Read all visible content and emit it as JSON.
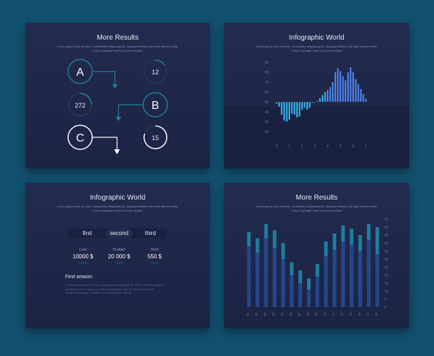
{
  "card1": {
    "title": "More Results",
    "subtitle_lines": [
      "Lorem ipsum dolor sit amet, consectetur adipiscing elit. Quisque facilisis odio vitae laoreet mollis.",
      "Fusce vulputate lorem vel lorem facilisis"
    ],
    "letters": [
      "A",
      "B",
      "C"
    ],
    "numbers": [
      "12",
      "272",
      "15"
    ]
  },
  "card2": {
    "title": "Infographic World",
    "subtitle_lines": [
      "Lorem ipsum dolor sit amet, consectetur adipiscing elit. Quisque facilisis odio vitae laoreet mollis.",
      "Fusce vulputate lorem vel lorem facilisis"
    ]
  },
  "card3": {
    "title": "Infographic World",
    "subtitle_lines": [
      "Lorem ipsum dolor sit amet, consectetur adipiscing elit. Quisque facilisis odio vitae laoreet mollis.",
      "Fusce vulputate lorem vel lorem facilisis"
    ],
    "tabs": [
      "first",
      "second",
      "third"
    ],
    "stats": [
      {
        "label": "Last",
        "value": "10000 $",
        "pct": "+12%"
      },
      {
        "label": "Budget",
        "value": "20 000 $",
        "pct": "+12%"
      },
      {
        "label": "Next",
        "value": "550 $",
        "pct": "+12%"
      }
    ],
    "section_title": "First season",
    "section_text": [
      "Lorem ipsum dolor sit amet, consectetur adipiscing elit. Etiam vel lorem aliquet.",
      "Vestibulum lorem purus, in odio pellentesque lobortis. Etiam consequat",
      "fringilla consequat. Curabitur vel pellentesque iaculis."
    ]
  },
  "card4": {
    "title": "More Results",
    "subtitle_lines": [
      "Lorem ipsum dolor sit amet, consectetur adipiscing elit. Quisque facilisis odio vitae laoreet mollis.",
      "Fusce vulputate lorem vel lorem facilisis"
    ]
  },
  "colors": {
    "page_bg": "#11506e",
    "card_bg": "#232b4f",
    "cyan": "#36b3ea",
    "blue": "#4f86ee",
    "teal": "#1e7f9e",
    "navy": "#25468a"
  },
  "chart_data": [
    {
      "type": "bar",
      "title": "Infographic World",
      "x_ticks": [
        "0",
        "1",
        "2",
        "3",
        "4",
        "5",
        "6",
        "7"
      ],
      "y_ticks": [
        "90",
        "80",
        "70",
        "60",
        "50",
        "40",
        "30",
        "20"
      ],
      "ylim": [
        20,
        90
      ],
      "baseline": 50,
      "x_range": [
        0,
        7
      ],
      "x": [
        0,
        0.2,
        0.4,
        0.6,
        0.8,
        1,
        1.2,
        1.4,
        1.6,
        1.8,
        2,
        2.2,
        2.4,
        2.6,
        2.8,
        3,
        3.2,
        3.4,
        3.6,
        3.8,
        4,
        4.2,
        4.4,
        4.6,
        4.8,
        5,
        5.2,
        5.4,
        5.6,
        5.8,
        6,
        6.2,
        6.4,
        6.6,
        6.8,
        7
      ],
      "values": [
        48,
        45,
        37,
        31,
        30,
        32,
        38,
        37,
        34,
        35,
        42,
        44,
        42,
        44,
        49,
        50,
        51,
        54,
        57,
        60,
        62,
        65,
        70,
        80,
        84,
        81,
        76,
        72,
        80,
        85,
        80,
        73,
        68,
        63,
        58,
        53
      ]
    },
    {
      "type": "bar",
      "title": "More Results",
      "categories": [
        "01",
        "02",
        "03",
        "04",
        "05",
        "06",
        "07",
        "08",
        "09",
        "10",
        "11",
        "12",
        "13",
        "14",
        "15",
        "16"
      ],
      "y_ticks": [
        "55",
        "50",
        "45",
        "40",
        "35",
        "30",
        "25",
        "20",
        "15",
        "10",
        "5",
        "0"
      ],
      "ylim": [
        0,
        57
      ],
      "series": [
        {
          "values": [
            47,
            43,
            52,
            48,
            40,
            28,
            23,
            18,
            27,
            41,
            46,
            51,
            49,
            45,
            52,
            50
          ]
        },
        {
          "values": [
            38,
            34,
            43,
            37,
            30,
            20,
            15,
            11,
            19,
            32,
            36,
            41,
            39,
            35,
            42,
            33
          ]
        }
      ]
    }
  ]
}
